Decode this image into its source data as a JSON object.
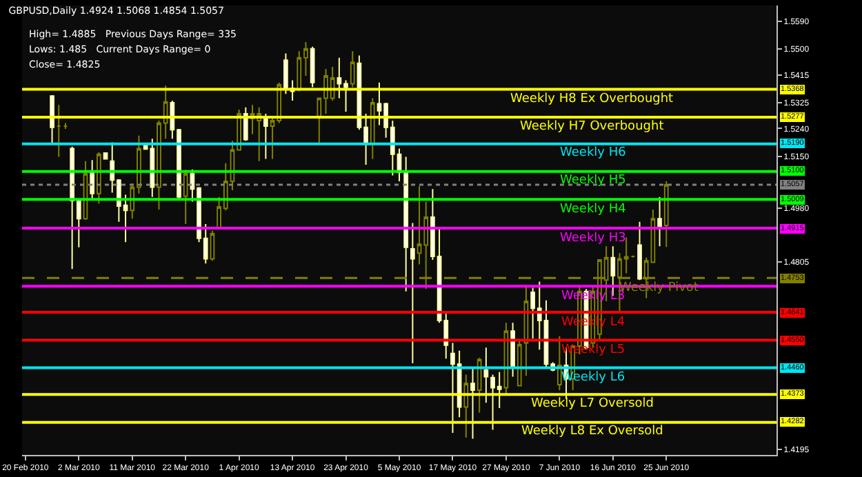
{
  "chart_data": {
    "type": "candlestick",
    "title": "GBPUSD,Daily 1.4924 1.5068 1.4854 1.5057",
    "annotations": [
      "High= 1.4885   Previous Days Range= 335",
      "Lows: 1.485   Current Days Range= 0",
      "Close= 1.4825",
      {
        "text": "1.5368",
        "y": 1.5368
      },
      {
        "text": "1.5277",
        "y": 1.5277
      },
      {
        "text": "1.5190",
        "y": 1.519
      },
      {
        "text": "1.5100",
        "y": 1.51
      },
      {
        "text": "1.5057",
        "y": 1.5057
      },
      {
        "text": "1.5009",
        "y": 1.5009
      },
      {
        "text": "1.4915",
        "y": 1.4915
      },
      {
        "text": "1.4753",
        "y": 1.4753
      },
      {
        "text": "1.4641",
        "y": 1.4641
      },
      {
        "text": "1.4550",
        "y": 1.455
      },
      {
        "text": "1.4460",
        "y": 1.446
      },
      {
        "text": "1.4373",
        "y": 1.4373
      },
      {
        "text": "1.4282",
        "y": 1.4282
      }
    ],
    "categories": [
      "20 Feb 2010",
      null,
      null,
      null,
      null,
      null,
      null,
      null,
      "2 Mar 2010",
      null,
      null,
      null,
      null,
      null,
      null,
      null,
      "11 Mar 2010",
      null,
      null,
      null,
      null,
      null,
      null,
      null,
      "22 Mar 2010",
      null,
      null,
      null,
      null,
      null,
      null,
      null,
      "1 Apr 2010",
      null,
      null,
      null,
      null,
      null,
      null,
      null,
      "13 Apr 2010",
      null,
      null,
      null,
      null,
      null,
      null,
      null,
      "23 Apr 2010",
      null,
      null,
      null,
      null,
      null,
      null,
      null,
      "5 May 2010",
      null,
      null,
      null,
      null,
      null,
      null,
      null,
      "17 May 2010",
      null,
      null,
      null,
      null,
      null,
      null,
      null,
      "27 May 2010",
      null,
      null,
      null,
      null,
      null,
      null,
      null,
      "7 Jun 2010",
      null,
      null,
      null,
      null,
      null,
      null,
      null,
      "16 Jun 2010",
      null,
      null,
      null,
      null,
      null,
      null,
      null,
      "25 Jun 2010",
      null,
      null,
      null,
      null,
      null,
      null,
      null,
      null,
      null,
      null,
      null,
      null,
      null,
      null,
      null,
      null
    ],
    "ohlc": [
      null,
      null,
      null,
      null,
      [
        1.5346,
        1.5349,
        1.5192,
        1.5244
      ],
      [
        1.5248,
        1.5317,
        1.5148,
        1.5248
      ],
      [
        1.5248,
        1.5258,
        1.5239,
        1.5248
      ],
      [
        1.5175,
        1.5181,
        1.4782,
        1.5005
      ],
      [
        1.5005,
        1.5005,
        1.4853,
        1.4946
      ],
      [
        1.4946,
        1.5134,
        1.4943,
        1.5093
      ],
      [
        1.5096,
        1.5137,
        1.5009,
        1.5028
      ],
      [
        1.5028,
        1.5163,
        1.4995,
        1.5156
      ],
      [
        1.516,
        1.516,
        1.5141,
        1.5141
      ],
      [
        1.5134,
        1.5195,
        1.5031,
        1.5072
      ],
      [
        1.5072,
        1.5075,
        1.4936,
        1.4987
      ],
      [
        1.499,
        1.5024,
        1.487,
        1.4973
      ],
      [
        1.4973,
        1.5061,
        1.4946,
        1.5049
      ],
      [
        1.5049,
        1.5217,
        1.5028,
        1.5175
      ],
      [
        1.5185,
        1.5185,
        1.5173,
        1.5173
      ],
      [
        1.5175,
        1.5207,
        1.5017,
        1.5049
      ],
      [
        1.5049,
        1.5266,
        1.4976,
        1.5258
      ],
      [
        1.5258,
        1.538,
        1.5207,
        1.5327
      ],
      [
        1.5324,
        1.5331,
        1.5207,
        1.5236
      ],
      [
        1.5236,
        1.5239,
        1.5009,
        1.5017
      ],
      [
        1.502,
        1.5105,
        1.4929,
        1.5093
      ],
      [
        1.5093,
        1.5107,
        1.5002,
        1.5043
      ],
      [
        1.5046,
        1.5049,
        1.487,
        1.4882
      ],
      [
        1.4882,
        1.4929,
        1.48,
        1.4815
      ],
      [
        1.4815,
        1.4907,
        1.4809,
        1.4897
      ],
      [
        1.4917,
        1.5017,
        1.4914,
        1.4985
      ],
      [
        1.498,
        1.5127,
        1.4973,
        1.5068
      ],
      [
        1.5068,
        1.52,
        1.5039,
        1.517
      ],
      [
        1.517,
        1.5302,
        1.517,
        1.5288
      ],
      [
        1.5288,
        1.5309,
        1.52,
        1.5204
      ],
      [
        1.5273,
        1.5317,
        1.5222,
        1.5288
      ],
      [
        1.5266,
        1.5309,
        1.5134,
        1.5288
      ],
      [
        1.5273,
        1.5288,
        1.5141,
        1.5248
      ],
      [
        1.5248,
        1.528,
        1.5141,
        1.5266
      ],
      [
        1.5266,
        1.539,
        1.5258,
        1.5383
      ],
      [
        1.5463,
        1.5485,
        1.5353,
        1.5368
      ],
      [
        1.5371,
        1.5397,
        1.5331,
        1.5361
      ],
      [
        1.5368,
        1.5492,
        1.5361,
        1.5471
      ],
      [
        1.5471,
        1.5522,
        1.5412,
        1.55
      ],
      [
        1.55,
        1.5507,
        1.5375,
        1.539
      ],
      [
        1.528,
        1.5339,
        1.5192,
        1.5339
      ],
      [
        1.5339,
        1.5434,
        1.5288,
        1.5412
      ],
      [
        1.5339,
        1.5441,
        1.5331,
        1.5405
      ],
      [
        1.5405,
        1.5471,
        1.5339,
        1.5386
      ],
      [
        1.5386,
        1.5397,
        1.5295,
        1.5375
      ],
      [
        1.5386,
        1.5492,
        1.5375,
        1.5456
      ],
      [
        1.5453,
        1.5478,
        1.5236,
        1.5244
      ],
      [
        1.5244,
        1.5288,
        1.5122,
        1.5189
      ],
      [
        1.5189,
        1.5339,
        1.5141,
        1.5324
      ],
      [
        1.5321,
        1.539,
        1.5251,
        1.5298
      ],
      [
        1.5321,
        1.5324,
        1.521,
        1.5244
      ],
      [
        1.5244,
        1.5266,
        1.5087,
        1.5156
      ],
      [
        1.5156,
        1.5175,
        1.5068,
        1.5097
      ],
      [
        1.5097,
        1.5148,
        1.4709,
        1.4853
      ],
      [
        1.4848,
        1.4932,
        1.4475,
        1.4815
      ],
      [
        1.4834,
        1.5053,
        1.4797,
        1.4863
      ],
      [
        1.486,
        1.5002,
        1.4717,
        1.4951
      ],
      [
        1.4951,
        1.5043,
        1.4812,
        1.4823
      ],
      [
        1.4823,
        1.4914,
        1.4607,
        1.4614
      ],
      [
        1.4614,
        1.4636,
        1.449,
        1.4534
      ],
      [
        1.4507,
        1.4541,
        1.4248,
        1.4472
      ],
      [
        1.4472,
        1.4516,
        1.4299,
        1.4332
      ],
      [
        1.4332,
        1.4438,
        1.4233,
        1.4409
      ],
      [
        1.4409,
        1.446,
        1.4229,
        1.4387
      ],
      [
        1.4387,
        1.4493,
        1.4314,
        1.4487
      ],
      [
        1.4453,
        1.4526,
        1.4346,
        1.4431
      ],
      [
        1.4428,
        1.4438,
        1.4258,
        1.4395
      ],
      [
        1.4399,
        1.4446,
        1.4329,
        1.439
      ],
      [
        1.4395,
        1.4607,
        1.4373,
        1.458
      ],
      [
        1.458,
        1.4607,
        1.4431,
        1.4463
      ],
      [
        1.4402,
        1.4548,
        1.4402,
        1.4536
      ],
      [
        1.4541,
        1.4724,
        1.4434,
        1.4677
      ],
      [
        1.4706,
        1.4721,
        1.4556,
        1.4654
      ],
      [
        1.4654,
        1.4741,
        1.4519,
        1.4614
      ],
      [
        1.4614,
        1.468,
        1.4463,
        1.4472
      ],
      [
        1.4472,
        1.4478,
        1.4449,
        1.4453
      ],
      [
        1.4405,
        1.4563,
        1.4387,
        1.4468
      ],
      [
        1.4468,
        1.4526,
        1.4358,
        1.4424
      ],
      [
        1.4424,
        1.4531,
        1.4387,
        1.4531
      ],
      [
        1.4531,
        1.4724,
        1.4504,
        1.4709
      ],
      [
        1.4709,
        1.4717,
        1.4519,
        1.4526
      ],
      [
        1.4541,
        1.4724,
        1.4526,
        1.4709
      ],
      [
        1.457,
        1.4812,
        1.4548,
        1.4812
      ],
      [
        1.4746,
        1.4856,
        1.4677,
        1.4819
      ],
      [
        1.4819,
        1.4856,
        1.4695,
        1.476
      ],
      [
        1.4756,
        1.4834,
        1.4643,
        1.4815
      ],
      [
        1.4815,
        1.4885,
        1.4768,
        1.4822
      ],
      [
        1.4823,
        1.4826,
        1.482,
        1.4823
      ],
      [
        1.486,
        1.4936,
        1.4746,
        1.475
      ],
      [
        1.475,
        1.4819,
        1.4687,
        1.4809
      ],
      [
        1.4804,
        1.4976,
        1.4804,
        1.4946
      ],
      [
        1.4946,
        1.5017,
        1.4856,
        1.4921
      ],
      [
        1.4924,
        1.5068,
        1.4854,
        1.5057
      ],
      null,
      null,
      null,
      null,
      null,
      null,
      null,
      null,
      null,
      null,
      null,
      null,
      null,
      null,
      null,
      null
    ],
    "ylim": [
      1.4176,
      1.5641
    ],
    "yticks": [
      {
        "value": 1.559,
        "label": "1.5590"
      },
      {
        "value": 1.55,
        "label": "1.5500"
      },
      1.5415,
      1.5325,
      {
        "value": 1.524,
        "label": "1.5240"
      },
      {
        "value": 1.515,
        "label": "1.5150"
      },
      {
        "value": 1.498,
        "label": "1.4980"
      },
      1.4805,
      1.4195
    ],
    "ref_lines": [
      {
        "axis": "y",
        "value": 1.5368,
        "label": "Weekly H8 Ex Overbought",
        "color": "#ffff00",
        "line_style": "solid"
      },
      {
        "axis": "y",
        "value": 1.5277,
        "label": "Weekly H7 Overbought",
        "color": "#ffff00",
        "line_style": "solid"
      },
      {
        "axis": "y",
        "value": 1.519,
        "label": "Weekly H6",
        "color": "#00e5ee",
        "line_style": "solid"
      },
      {
        "axis": "y",
        "value": 1.51,
        "label": "Weekly H5",
        "color": "#00ff00",
        "line_style": "solid"
      },
      {
        "axis": "y",
        "value": 1.5057,
        "label": null,
        "color": "#808080",
        "line_style": "dotted"
      },
      {
        "axis": "y",
        "value": 1.5009,
        "label": "Weekly H4",
        "color": "#00ff00",
        "line_style": "solid"
      },
      {
        "axis": "y",
        "value": 1.4915,
        "label": "Weekly H3",
        "color": "#ff00ff",
        "line_style": "solid"
      },
      {
        "axis": "y",
        "value": 1.4726,
        "label": "Weekly L3",
        "color": "#ff00ff",
        "line_style": "solid"
      },
      {
        "axis": "y",
        "value": 1.4753,
        "label": "Weekly Pivot",
        "color": "#808000",
        "line_style": "dashed"
      },
      {
        "axis": "y",
        "value": 1.4641,
        "label": "Weekly L4",
        "color": "#ff0000",
        "line_style": "solid"
      },
      {
        "axis": "y",
        "value": 1.455,
        "label": "Weekly L5",
        "color": "#ff0000",
        "line_style": "solid"
      },
      {
        "axis": "y",
        "value": 1.446,
        "label": "Weekly L6",
        "color": "#00e5ee",
        "line_style": "solid"
      },
      {
        "axis": "y",
        "value": 1.4373,
        "label": "Weekly L7 Oversold",
        "color": "#ffff00",
        "line_style": "solid"
      },
      {
        "axis": "y",
        "value": 1.4282,
        "label": "Weekly L8 Ex Oversold",
        "color": "#ffff00",
        "line_style": "solid"
      }
    ],
    "tick_labels": true
  }
}
